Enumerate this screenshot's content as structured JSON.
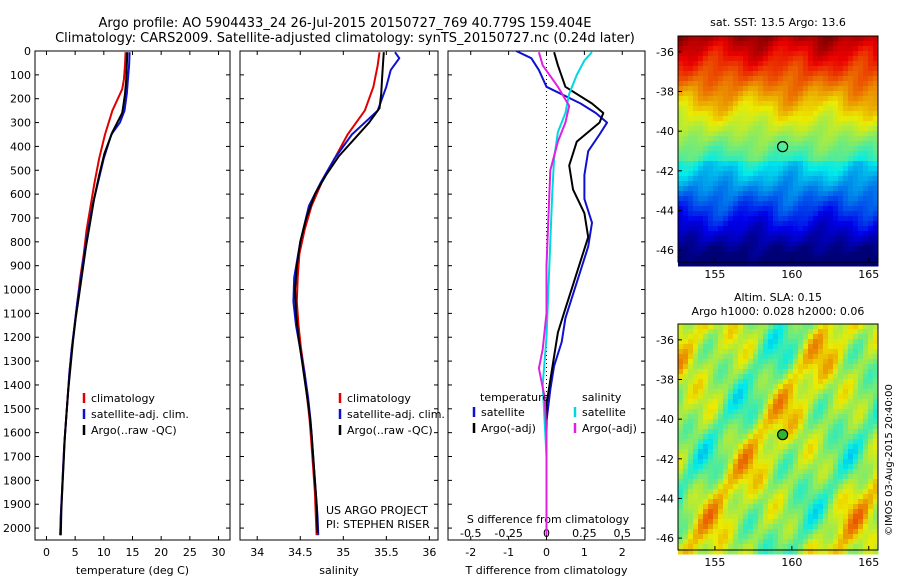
{
  "header": {
    "line1": "Argo profile: AO 5904433_24 26-Jul-2015 20150727_769 40.779S 159.404E",
    "line2": "Climatology: CARS2009. Satellite-adjusted climatology: synTS_20150727.nc (0.24d later)"
  },
  "colors": {
    "climatology": "#e00000",
    "satellite": "#1010d0",
    "argo": "#000000",
    "sal_satellite": "#00d8e0",
    "sal_argo": "#e020e0"
  },
  "chart_data": [
    {
      "type": "line",
      "panel": "temperature",
      "xlabel": "temperature (deg C)",
      "ylabel": "",
      "xlim": [
        -2,
        32
      ],
      "xticks": [
        "0",
        "5",
        "10",
        "15",
        "20",
        "25",
        "30"
      ],
      "ylim": [
        2050,
        0
      ],
      "yticks": [
        "0",
        "100",
        "200",
        "300",
        "400",
        "500",
        "600",
        "700",
        "800",
        "900",
        "1000",
        "1100",
        "1200",
        "1300",
        "1400",
        "1500",
        "1600",
        "1700",
        "1800",
        "1900",
        "2000"
      ],
      "legend": [
        "climatology",
        "satellite-adj. clim.",
        "Argo(..raw -QC)"
      ],
      "series": [
        {
          "name": "climatology",
          "color_key": "climatology",
          "points": [
            [
              13.8,
              5
            ],
            [
              13.7,
              60
            ],
            [
              13.5,
              120
            ],
            [
              13.2,
              160
            ],
            [
              11.5,
              250
            ],
            [
              10.2,
              350
            ],
            [
              9.2,
              450
            ],
            [
              8.4,
              550
            ],
            [
              7.7,
              650
            ],
            [
              7,
              750
            ],
            [
              6.5,
              850
            ],
            [
              5.9,
              950
            ],
            [
              5.4,
              1050
            ],
            [
              4.9,
              1150
            ],
            [
              4.4,
              1250
            ],
            [
              4,
              1350
            ],
            [
              3.7,
              1450
            ],
            [
              3.4,
              1550
            ],
            [
              3.1,
              1650
            ],
            [
              2.9,
              1750
            ],
            [
              2.7,
              1850
            ],
            [
              2.5,
              1950
            ],
            [
              2.4,
              2030
            ]
          ]
        },
        {
          "name": "satellite-adj. clim.",
          "color_key": "satellite",
          "points": [
            [
              14.5,
              5
            ],
            [
              14.4,
              60
            ],
            [
              14.2,
              120
            ],
            [
              14,
              180
            ],
            [
              13.6,
              250
            ],
            [
              12.8,
              300
            ],
            [
              11.3,
              350
            ],
            [
              10,
              450
            ],
            [
              9,
              550
            ],
            [
              8,
              650
            ],
            [
              7.3,
              750
            ],
            [
              6.6,
              850
            ],
            [
              6,
              950
            ],
            [
              5.4,
              1050
            ],
            [
              4.9,
              1150
            ],
            [
              4.4,
              1250
            ],
            [
              4,
              1350
            ],
            [
              3.7,
              1450
            ],
            [
              3.4,
              1550
            ],
            [
              3.1,
              1650
            ],
            [
              2.9,
              1750
            ],
            [
              2.7,
              1850
            ],
            [
              2.5,
              1950
            ],
            [
              2.4,
              2030
            ]
          ]
        },
        {
          "name": "Argo(..raw -QC)",
          "color_key": "argo",
          "points": [
            [
              14.1,
              5
            ],
            [
              14,
              60
            ],
            [
              13.9,
              120
            ],
            [
              13.7,
              180
            ],
            [
              13.4,
              230
            ],
            [
              13.2,
              260
            ],
            [
              11.5,
              340
            ],
            [
              10.1,
              430
            ],
            [
              9.2,
              520
            ],
            [
              8.3,
              620
            ],
            [
              7.6,
              720
            ],
            [
              6.9,
              820
            ],
            [
              6.3,
              920
            ],
            [
              5.7,
              1020
            ],
            [
              5.1,
              1120
            ],
            [
              4.6,
              1220
            ],
            [
              4.2,
              1320
            ],
            [
              3.8,
              1420
            ],
            [
              3.5,
              1520
            ],
            [
              3.2,
              1620
            ],
            [
              3,
              1720
            ],
            [
              2.8,
              1820
            ],
            [
              2.6,
              1920
            ],
            [
              2.5,
              2030
            ]
          ]
        }
      ]
    },
    {
      "type": "line",
      "panel": "salinity",
      "xlabel": "salinity",
      "ylabel": "",
      "xlim": [
        33.8,
        36.1
      ],
      "xticks": [
        "34",
        "34.5",
        "35",
        "35.5",
        "36"
      ],
      "ylim": [
        2050,
        0
      ],
      "legend": [
        "climatology",
        "satellite-adj. clim.",
        "Argo(..raw -QC)"
      ],
      "notes": [
        "US ARGO PROJECT",
        "PI: STEPHEN RISER"
      ],
      "series": [
        {
          "name": "climatology",
          "color_key": "climatology",
          "points": [
            [
              35.42,
              5
            ],
            [
              35.4,
              60
            ],
            [
              35.35,
              150
            ],
            [
              35.25,
              250
            ],
            [
              35.05,
              350
            ],
            [
              34.9,
              450
            ],
            [
              34.75,
              550
            ],
            [
              34.63,
              650
            ],
            [
              34.55,
              750
            ],
            [
              34.49,
              850
            ],
            [
              34.47,
              950
            ],
            [
              34.46,
              1050
            ],
            [
              34.48,
              1150
            ],
            [
              34.51,
              1250
            ],
            [
              34.55,
              1350
            ],
            [
              34.58,
              1450
            ],
            [
              34.61,
              1550
            ],
            [
              34.63,
              1650
            ],
            [
              34.65,
              1750
            ],
            [
              34.67,
              1850
            ],
            [
              34.68,
              1950
            ],
            [
              34.69,
              2030
            ]
          ]
        },
        {
          "name": "satellite-adj. clim.",
          "color_key": "satellite",
          "points": [
            [
              35.6,
              5
            ],
            [
              35.65,
              30
            ],
            [
              35.55,
              80
            ],
            [
              35.5,
              150
            ],
            [
              35.4,
              250
            ],
            [
              35.1,
              350
            ],
            [
              34.9,
              450
            ],
            [
              34.74,
              550
            ],
            [
              34.6,
              650
            ],
            [
              34.5,
              800
            ],
            [
              34.43,
              950
            ],
            [
              34.42,
              1050
            ],
            [
              34.45,
              1150
            ],
            [
              34.5,
              1250
            ],
            [
              34.55,
              1350
            ],
            [
              34.59,
              1450
            ],
            [
              34.62,
              1550
            ],
            [
              34.64,
              1650
            ],
            [
              34.66,
              1750
            ],
            [
              34.68,
              1850
            ],
            [
              34.7,
              1950
            ],
            [
              34.71,
              2030
            ]
          ]
        },
        {
          "name": "Argo(..raw -QC)",
          "color_key": "argo",
          "points": [
            [
              35.47,
              5
            ],
            [
              35.46,
              60
            ],
            [
              35.45,
              120
            ],
            [
              35.44,
              180
            ],
            [
              35.42,
              240
            ],
            [
              35.3,
              300
            ],
            [
              35.15,
              360
            ],
            [
              34.95,
              440
            ],
            [
              34.8,
              520
            ],
            [
              34.67,
              600
            ],
            [
              34.57,
              700
            ],
            [
              34.5,
              800
            ],
            [
              34.46,
              900
            ],
            [
              34.44,
              1000
            ],
            [
              34.45,
              1100
            ],
            [
              34.48,
              1200
            ],
            [
              34.52,
              1300
            ],
            [
              34.56,
              1400
            ],
            [
              34.6,
              1500
            ],
            [
              34.63,
              1600
            ],
            [
              34.65,
              1700
            ],
            [
              34.67,
              1800
            ],
            [
              34.69,
              1900
            ],
            [
              34.7,
              2020
            ]
          ]
        }
      ]
    },
    {
      "type": "line",
      "panel": "difference",
      "xlabel": "T difference from climatology",
      "xlabel2": "S difference from climatology",
      "xlim": [
        -2.6,
        2.6
      ],
      "xticks": [
        "-2",
        "-1",
        "0",
        "1",
        "2"
      ],
      "xticks2": [
        "-0.5",
        "-0.25",
        "0",
        "0.25",
        "0.5"
      ],
      "ylim": [
        2050,
        0
      ],
      "legend_left_title": "temperature",
      "legend_right_title": "salinity",
      "legend_left": [
        "satellite",
        "Argo(-adj)"
      ],
      "legend_right": [
        "satellite",
        "Argo(-adj)"
      ],
      "series": [
        {
          "name": "T satellite",
          "color_key": "satellite",
          "points": [
            [
              -0.8,
              0
            ],
            [
              -0.4,
              30
            ],
            [
              -0.2,
              80
            ],
            [
              0,
              150
            ],
            [
              0.9,
              220
            ],
            [
              1.3,
              260
            ],
            [
              1.6,
              300
            ],
            [
              1.4,
              350
            ],
            [
              1.1,
              420
            ],
            [
              1,
              520
            ],
            [
              1,
              620
            ],
            [
              1.2,
              720
            ],
            [
              1.1,
              820
            ],
            [
              0.9,
              920
            ],
            [
              0.7,
              1020
            ],
            [
              0.5,
              1120
            ],
            [
              0.4,
              1220
            ],
            [
              0.2,
              1320
            ],
            [
              0.1,
              1420
            ],
            [
              0,
              1550
            ],
            [
              0,
              1700
            ],
            [
              0,
              1850
            ],
            [
              0,
              2030
            ]
          ]
        },
        {
          "name": "T Argo(-adj)",
          "color_key": "argo",
          "points": [
            [
              0.2,
              5
            ],
            [
              0.3,
              60
            ],
            [
              0.5,
              150
            ],
            [
              1.2,
              220
            ],
            [
              1.5,
              260
            ],
            [
              1.4,
              300
            ],
            [
              0.8,
              380
            ],
            [
              0.6,
              480
            ],
            [
              0.7,
              580
            ],
            [
              1,
              680
            ],
            [
              1.1,
              780
            ],
            [
              0.9,
              880
            ],
            [
              0.7,
              980
            ],
            [
              0.5,
              1080
            ],
            [
              0.3,
              1180
            ],
            [
              0.2,
              1280
            ],
            [
              0.1,
              1380
            ],
            [
              0,
              1480
            ],
            [
              0,
              1600
            ],
            [
              0,
              1750
            ],
            [
              0,
              1900
            ],
            [
              0,
              2030
            ]
          ]
        },
        {
          "name": "S satellite",
          "color_key": "sal_satellite",
          "points": [
            [
              1.2,
              5
            ],
            [
              1,
              40
            ],
            [
              0.8,
              100
            ],
            [
              0.6,
              180
            ],
            [
              0.5,
              260
            ],
            [
              0.3,
              340
            ],
            [
              0.2,
              450
            ],
            [
              0.15,
              600
            ],
            [
              0.1,
              800
            ],
            [
              0.05,
              1000
            ],
            [
              0,
              1200
            ],
            [
              -0.1,
              1400
            ],
            [
              -0.05,
              1550
            ],
            [
              0,
              1700
            ],
            [
              0,
              1850
            ],
            [
              0,
              2030
            ]
          ]
        },
        {
          "name": "S Argo(-adj)",
          "color_key": "sal_argo",
          "points": [
            [
              -0.2,
              5
            ],
            [
              -0.1,
              60
            ],
            [
              0.3,
              150
            ],
            [
              0.6,
              230
            ],
            [
              0.5,
              300
            ],
            [
              0.3,
              380
            ],
            [
              0.1,
              500
            ],
            [
              0.05,
              700
            ],
            [
              0,
              900
            ],
            [
              0,
              1100
            ],
            [
              -0.1,
              1250
            ],
            [
              -0.2,
              1330
            ],
            [
              -0.05,
              1450
            ],
            [
              0,
              1600
            ],
            [
              0,
              1800
            ],
            [
              0,
              2030
            ]
          ]
        }
      ]
    },
    {
      "type": "heatmap",
      "panel": "sst_map",
      "title": "sat. SST: 13.5  Argo: 13.6",
      "xlim": [
        152.6,
        165.6
      ],
      "ylim": [
        -46.6,
        -35.2
      ],
      "xticks": [
        "155",
        "160",
        "165"
      ],
      "yticks": [
        "-36",
        "-38",
        "-40",
        "-42",
        "-44",
        "-46"
      ],
      "marker": {
        "lon": 159.4,
        "lat": -40.78
      }
    },
    {
      "type": "heatmap",
      "panel": "sla_map",
      "title": "Altim. SLA: 0.15",
      "subtitle": "Argo h1000: 0.028 h2000: 0.06",
      "xlim": [
        152.6,
        165.6
      ],
      "ylim": [
        -46.6,
        -35.2
      ],
      "xticks": [
        "155",
        "160",
        "165"
      ],
      "yticks": [
        "-36",
        "-38",
        "-40",
        "-42",
        "-44",
        "-46"
      ],
      "marker": {
        "lon": 159.4,
        "lat": -40.78
      }
    }
  ],
  "credit": "©IMOS 03-Aug-2015 20:40:00"
}
